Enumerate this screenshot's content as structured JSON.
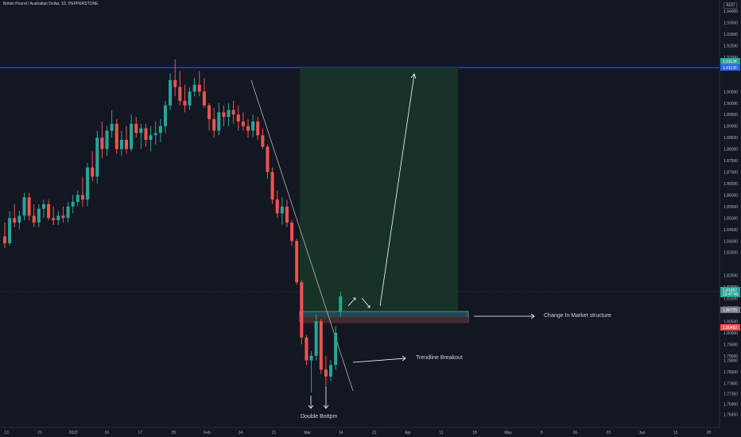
{
  "header": {
    "symbol_title": "British Pound / Australian Dollar, 1D, PEPPERSTONE",
    "currency": "AUD"
  },
  "annotations": {
    "change_structure": "Change In Market structure",
    "trendline_breakout": "Trendline Breakout",
    "double_bottom": "Double Bottpm"
  },
  "price_tags": {
    "top": "1.91134",
    "top2": "1.91130",
    "current": "1.81057",
    "countdown": "19:47:46",
    "mid": "1.80725",
    "low": "1.80492"
  },
  "colors": {
    "background": "#131722",
    "up": "#26a69a",
    "down": "#ef5350",
    "hline": "#2962ff",
    "profit_zone": "#163325"
  },
  "chart_data": {
    "type": "candlestick",
    "ylim": [
      1.7595,
      1.9435
    ],
    "y_ticks": [
      "1.94000",
      "1.93500",
      "1.93000",
      "1.92500",
      "1.92000",
      "1.91500",
      "1.90500",
      "1.90000",
      "1.89500",
      "1.89000",
      "1.88500",
      "1.88000",
      "1.87500",
      "1.87000",
      "1.86500",
      "1.86000",
      "1.85500",
      "1.85000",
      "1.84500",
      "1.84000",
      "1.83500",
      "1.82500",
      "1.82000",
      "1.81500",
      "1.81100",
      "1.80500",
      "1.80000",
      "1.79500",
      "1.79000",
      "1.78800",
      "1.78300",
      "1.77800",
      "1.77350",
      "1.76900",
      "1.76450",
      "1.75990"
    ],
    "x_ticks": [
      "13",
      "21",
      "2022",
      "10",
      "17",
      "25",
      "Feb",
      "14",
      "21",
      "Mar",
      "14",
      "21",
      "Apr",
      "11",
      "18",
      "May",
      "9",
      "16",
      "23",
      "Jun",
      "13",
      "20"
    ],
    "candles": [
      {
        "o": 1.842,
        "h": 1.848,
        "l": 1.837,
        "c": 1.839
      },
      {
        "o": 1.839,
        "h": 1.853,
        "l": 1.838,
        "c": 1.85
      },
      {
        "o": 1.85,
        "h": 1.856,
        "l": 1.846,
        "c": 1.848
      },
      {
        "o": 1.848,
        "h": 1.853,
        "l": 1.845,
        "c": 1.851
      },
      {
        "o": 1.851,
        "h": 1.861,
        "l": 1.849,
        "c": 1.859
      },
      {
        "o": 1.859,
        "h": 1.861,
        "l": 1.849,
        "c": 1.851
      },
      {
        "o": 1.851,
        "h": 1.856,
        "l": 1.846,
        "c": 1.848
      },
      {
        "o": 1.848,
        "h": 1.856,
        "l": 1.846,
        "c": 1.854
      },
      {
        "o": 1.854,
        "h": 1.858,
        "l": 1.85,
        "c": 1.856
      },
      {
        "o": 1.856,
        "h": 1.858,
        "l": 1.849,
        "c": 1.85
      },
      {
        "o": 1.85,
        "h": 1.855,
        "l": 1.847,
        "c": 1.849
      },
      {
        "o": 1.849,
        "h": 1.853,
        "l": 1.847,
        "c": 1.851
      },
      {
        "o": 1.851,
        "h": 1.855,
        "l": 1.848,
        "c": 1.85
      },
      {
        "o": 1.85,
        "h": 1.857,
        "l": 1.848,
        "c": 1.855
      },
      {
        "o": 1.855,
        "h": 1.86,
        "l": 1.852,
        "c": 1.857
      },
      {
        "o": 1.857,
        "h": 1.862,
        "l": 1.855,
        "c": 1.86
      },
      {
        "o": 1.86,
        "h": 1.868,
        "l": 1.855,
        "c": 1.858
      },
      {
        "o": 1.858,
        "h": 1.874,
        "l": 1.855,
        "c": 1.872
      },
      {
        "o": 1.872,
        "h": 1.879,
        "l": 1.866,
        "c": 1.868
      },
      {
        "o": 1.868,
        "h": 1.888,
        "l": 1.865,
        "c": 1.885
      },
      {
        "o": 1.885,
        "h": 1.892,
        "l": 1.876,
        "c": 1.88
      },
      {
        "o": 1.88,
        "h": 1.89,
        "l": 1.877,
        "c": 1.888
      },
      {
        "o": 1.888,
        "h": 1.897,
        "l": 1.885,
        "c": 1.891
      },
      {
        "o": 1.891,
        "h": 1.893,
        "l": 1.878,
        "c": 1.88
      },
      {
        "o": 1.88,
        "h": 1.888,
        "l": 1.877,
        "c": 1.884
      },
      {
        "o": 1.884,
        "h": 1.89,
        "l": 1.878,
        "c": 1.88
      },
      {
        "o": 1.88,
        "h": 1.895,
        "l": 1.879,
        "c": 1.891
      },
      {
        "o": 1.891,
        "h": 1.894,
        "l": 1.885,
        "c": 1.887
      },
      {
        "o": 1.887,
        "h": 1.891,
        "l": 1.88,
        "c": 1.889
      },
      {
        "o": 1.889,
        "h": 1.891,
        "l": 1.881,
        "c": 1.884
      },
      {
        "o": 1.884,
        "h": 1.89,
        "l": 1.879,
        "c": 1.886
      },
      {
        "o": 1.886,
        "h": 1.892,
        "l": 1.882,
        "c": 1.887
      },
      {
        "o": 1.887,
        "h": 1.893,
        "l": 1.883,
        "c": 1.89
      },
      {
        "o": 1.89,
        "h": 1.901,
        "l": 1.887,
        "c": 1.899
      },
      {
        "o": 1.899,
        "h": 1.913,
        "l": 1.897,
        "c": 1.91
      },
      {
        "o": 1.91,
        "h": 1.919,
        "l": 1.903,
        "c": 1.907
      },
      {
        "o": 1.907,
        "h": 1.914,
        "l": 1.899,
        "c": 1.901
      },
      {
        "o": 1.901,
        "h": 1.908,
        "l": 1.896,
        "c": 1.899
      },
      {
        "o": 1.899,
        "h": 1.907,
        "l": 1.897,
        "c": 1.905
      },
      {
        "o": 1.905,
        "h": 1.911,
        "l": 1.903,
        "c": 1.908
      },
      {
        "o": 1.908,
        "h": 1.914,
        "l": 1.903,
        "c": 1.905
      },
      {
        "o": 1.905,
        "h": 1.911,
        "l": 1.898,
        "c": 1.899
      },
      {
        "o": 1.899,
        "h": 1.9,
        "l": 1.888,
        "c": 1.893
      },
      {
        "o": 1.893,
        "h": 1.898,
        "l": 1.885,
        "c": 1.888
      },
      {
        "o": 1.888,
        "h": 1.9,
        "l": 1.886,
        "c": 1.896
      },
      {
        "o": 1.896,
        "h": 1.899,
        "l": 1.89,
        "c": 1.894
      },
      {
        "o": 1.894,
        "h": 1.9,
        "l": 1.89,
        "c": 1.897
      },
      {
        "o": 1.897,
        "h": 1.901,
        "l": 1.891,
        "c": 1.895
      },
      {
        "o": 1.895,
        "h": 1.899,
        "l": 1.888,
        "c": 1.892
      },
      {
        "o": 1.892,
        "h": 1.896,
        "l": 1.888,
        "c": 1.89
      },
      {
        "o": 1.89,
        "h": 1.893,
        "l": 1.885,
        "c": 1.888
      },
      {
        "o": 1.888,
        "h": 1.895,
        "l": 1.885,
        "c": 1.892
      },
      {
        "o": 1.892,
        "h": 1.894,
        "l": 1.884,
        "c": 1.886
      },
      {
        "o": 1.886,
        "h": 1.889,
        "l": 1.88,
        "c": 1.881
      },
      {
        "o": 1.881,
        "h": 1.882,
        "l": 1.867,
        "c": 1.87
      },
      {
        "o": 1.87,
        "h": 1.872,
        "l": 1.856,
        "c": 1.858
      },
      {
        "o": 1.858,
        "h": 1.862,
        "l": 1.85,
        "c": 1.852
      },
      {
        "o": 1.852,
        "h": 1.859,
        "l": 1.847,
        "c": 1.855
      },
      {
        "o": 1.855,
        "h": 1.858,
        "l": 1.846,
        "c": 1.848
      },
      {
        "o": 1.848,
        "h": 1.849,
        "l": 1.838,
        "c": 1.84
      },
      {
        "o": 1.84,
        "h": 1.841,
        "l": 1.821,
        "c": 1.822
      },
      {
        "o": 1.822,
        "h": 1.823,
        "l": 1.795,
        "c": 1.798
      },
      {
        "o": 1.798,
        "h": 1.799,
        "l": 1.786,
        "c": 1.788
      },
      {
        "o": 1.788,
        "h": 1.792,
        "l": 1.774,
        "c": 1.79
      },
      {
        "o": 1.79,
        "h": 1.808,
        "l": 1.788,
        "c": 1.805
      },
      {
        "o": 1.805,
        "h": 1.806,
        "l": 1.782,
        "c": 1.784
      },
      {
        "o": 1.784,
        "h": 1.79,
        "l": 1.777,
        "c": 1.781
      },
      {
        "o": 1.781,
        "h": 1.788,
        "l": 1.779,
        "c": 1.786
      },
      {
        "o": 1.786,
        "h": 1.803,
        "l": 1.784,
        "c": 1.8
      },
      {
        "o": 1.809,
        "h": 1.818,
        "l": 1.807,
        "c": 1.816
      }
    ]
  }
}
